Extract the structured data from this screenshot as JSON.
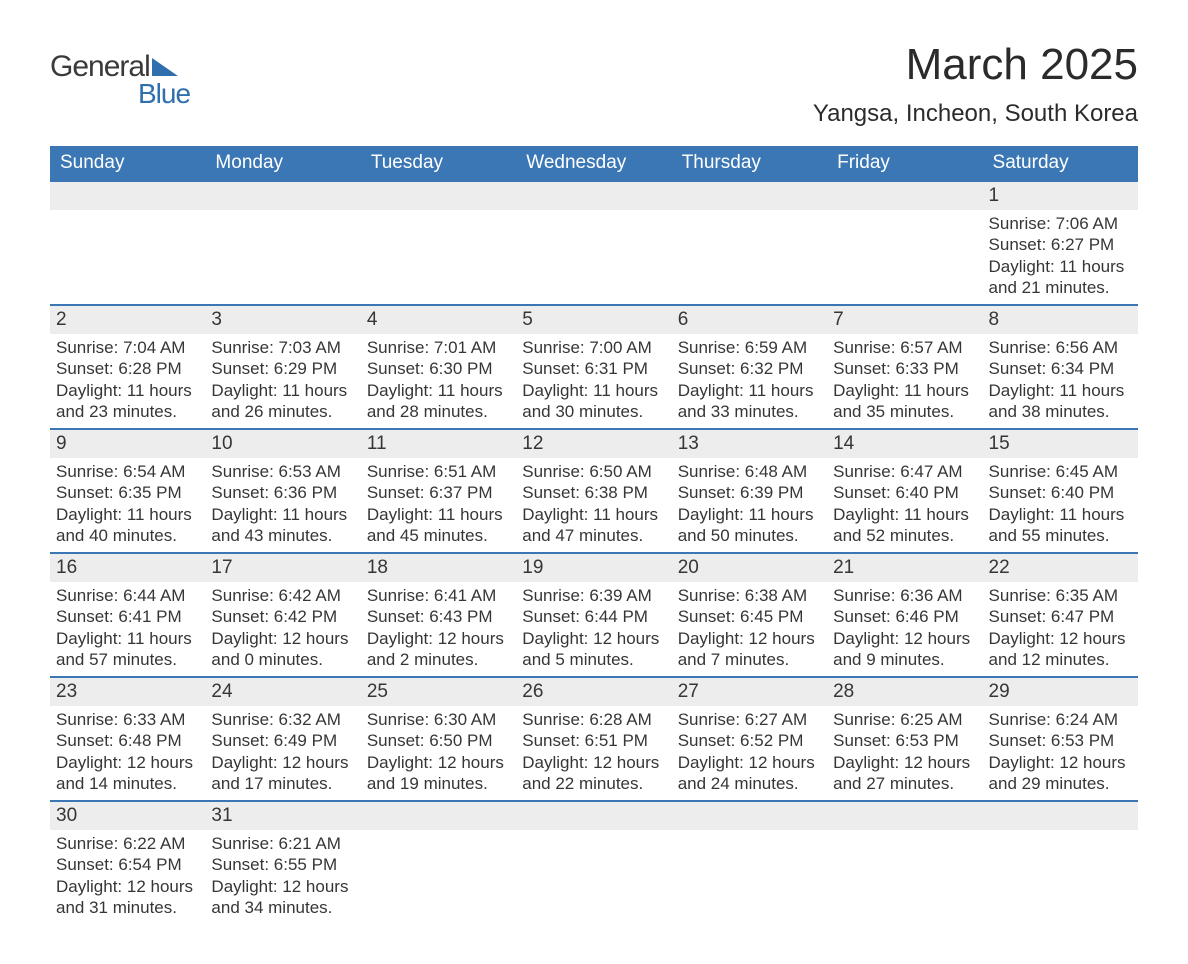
{
  "logo": {
    "word1": "General",
    "word2": "Blue"
  },
  "title": "March 2025",
  "location": "Yangsa, Incheon, South Korea",
  "colors": {
    "header_bg": "#3b77b4",
    "header_text": "#ffffff",
    "daynum_bg": "#ededed",
    "row_border": "#3b77b4",
    "text": "#363636",
    "logo_accent": "#2f6fae"
  },
  "weekdays": [
    "Sunday",
    "Monday",
    "Tuesday",
    "Wednesday",
    "Thursday",
    "Friday",
    "Saturday"
  ],
  "weeks": [
    [
      null,
      null,
      null,
      null,
      null,
      null,
      {
        "n": "1",
        "sunrise": "Sunrise: 7:06 AM",
        "sunset": "Sunset: 6:27 PM",
        "daylight": "Daylight: 11 hours and 21 minutes."
      }
    ],
    [
      {
        "n": "2",
        "sunrise": "Sunrise: 7:04 AM",
        "sunset": "Sunset: 6:28 PM",
        "daylight": "Daylight: 11 hours and 23 minutes."
      },
      {
        "n": "3",
        "sunrise": "Sunrise: 7:03 AM",
        "sunset": "Sunset: 6:29 PM",
        "daylight": "Daylight: 11 hours and 26 minutes."
      },
      {
        "n": "4",
        "sunrise": "Sunrise: 7:01 AM",
        "sunset": "Sunset: 6:30 PM",
        "daylight": "Daylight: 11 hours and 28 minutes."
      },
      {
        "n": "5",
        "sunrise": "Sunrise: 7:00 AM",
        "sunset": "Sunset: 6:31 PM",
        "daylight": "Daylight: 11 hours and 30 minutes."
      },
      {
        "n": "6",
        "sunrise": "Sunrise: 6:59 AM",
        "sunset": "Sunset: 6:32 PM",
        "daylight": "Daylight: 11 hours and 33 minutes."
      },
      {
        "n": "7",
        "sunrise": "Sunrise: 6:57 AM",
        "sunset": "Sunset: 6:33 PM",
        "daylight": "Daylight: 11 hours and 35 minutes."
      },
      {
        "n": "8",
        "sunrise": "Sunrise: 6:56 AM",
        "sunset": "Sunset: 6:34 PM",
        "daylight": "Daylight: 11 hours and 38 minutes."
      }
    ],
    [
      {
        "n": "9",
        "sunrise": "Sunrise: 6:54 AM",
        "sunset": "Sunset: 6:35 PM",
        "daylight": "Daylight: 11 hours and 40 minutes."
      },
      {
        "n": "10",
        "sunrise": "Sunrise: 6:53 AM",
        "sunset": "Sunset: 6:36 PM",
        "daylight": "Daylight: 11 hours and 43 minutes."
      },
      {
        "n": "11",
        "sunrise": "Sunrise: 6:51 AM",
        "sunset": "Sunset: 6:37 PM",
        "daylight": "Daylight: 11 hours and 45 minutes."
      },
      {
        "n": "12",
        "sunrise": "Sunrise: 6:50 AM",
        "sunset": "Sunset: 6:38 PM",
        "daylight": "Daylight: 11 hours and 47 minutes."
      },
      {
        "n": "13",
        "sunrise": "Sunrise: 6:48 AM",
        "sunset": "Sunset: 6:39 PM",
        "daylight": "Daylight: 11 hours and 50 minutes."
      },
      {
        "n": "14",
        "sunrise": "Sunrise: 6:47 AM",
        "sunset": "Sunset: 6:40 PM",
        "daylight": "Daylight: 11 hours and 52 minutes."
      },
      {
        "n": "15",
        "sunrise": "Sunrise: 6:45 AM",
        "sunset": "Sunset: 6:40 PM",
        "daylight": "Daylight: 11 hours and 55 minutes."
      }
    ],
    [
      {
        "n": "16",
        "sunrise": "Sunrise: 6:44 AM",
        "sunset": "Sunset: 6:41 PM",
        "daylight": "Daylight: 11 hours and 57 minutes."
      },
      {
        "n": "17",
        "sunrise": "Sunrise: 6:42 AM",
        "sunset": "Sunset: 6:42 PM",
        "daylight": "Daylight: 12 hours and 0 minutes."
      },
      {
        "n": "18",
        "sunrise": "Sunrise: 6:41 AM",
        "sunset": "Sunset: 6:43 PM",
        "daylight": "Daylight: 12 hours and 2 minutes."
      },
      {
        "n": "19",
        "sunrise": "Sunrise: 6:39 AM",
        "sunset": "Sunset: 6:44 PM",
        "daylight": "Daylight: 12 hours and 5 minutes."
      },
      {
        "n": "20",
        "sunrise": "Sunrise: 6:38 AM",
        "sunset": "Sunset: 6:45 PM",
        "daylight": "Daylight: 12 hours and 7 minutes."
      },
      {
        "n": "21",
        "sunrise": "Sunrise: 6:36 AM",
        "sunset": "Sunset: 6:46 PM",
        "daylight": "Daylight: 12 hours and 9 minutes."
      },
      {
        "n": "22",
        "sunrise": "Sunrise: 6:35 AM",
        "sunset": "Sunset: 6:47 PM",
        "daylight": "Daylight: 12 hours and 12 minutes."
      }
    ],
    [
      {
        "n": "23",
        "sunrise": "Sunrise: 6:33 AM",
        "sunset": "Sunset: 6:48 PM",
        "daylight": "Daylight: 12 hours and 14 minutes."
      },
      {
        "n": "24",
        "sunrise": "Sunrise: 6:32 AM",
        "sunset": "Sunset: 6:49 PM",
        "daylight": "Daylight: 12 hours and 17 minutes."
      },
      {
        "n": "25",
        "sunrise": "Sunrise: 6:30 AM",
        "sunset": "Sunset: 6:50 PM",
        "daylight": "Daylight: 12 hours and 19 minutes."
      },
      {
        "n": "26",
        "sunrise": "Sunrise: 6:28 AM",
        "sunset": "Sunset: 6:51 PM",
        "daylight": "Daylight: 12 hours and 22 minutes."
      },
      {
        "n": "27",
        "sunrise": "Sunrise: 6:27 AM",
        "sunset": "Sunset: 6:52 PM",
        "daylight": "Daylight: 12 hours and 24 minutes."
      },
      {
        "n": "28",
        "sunrise": "Sunrise: 6:25 AM",
        "sunset": "Sunset: 6:53 PM",
        "daylight": "Daylight: 12 hours and 27 minutes."
      },
      {
        "n": "29",
        "sunrise": "Sunrise: 6:24 AM",
        "sunset": "Sunset: 6:53 PM",
        "daylight": "Daylight: 12 hours and 29 minutes."
      }
    ],
    [
      {
        "n": "30",
        "sunrise": "Sunrise: 6:22 AM",
        "sunset": "Sunset: 6:54 PM",
        "daylight": "Daylight: 12 hours and 31 minutes."
      },
      {
        "n": "31",
        "sunrise": "Sunrise: 6:21 AM",
        "sunset": "Sunset: 6:55 PM",
        "daylight": "Daylight: 12 hours and 34 minutes."
      },
      null,
      null,
      null,
      null,
      null
    ]
  ]
}
